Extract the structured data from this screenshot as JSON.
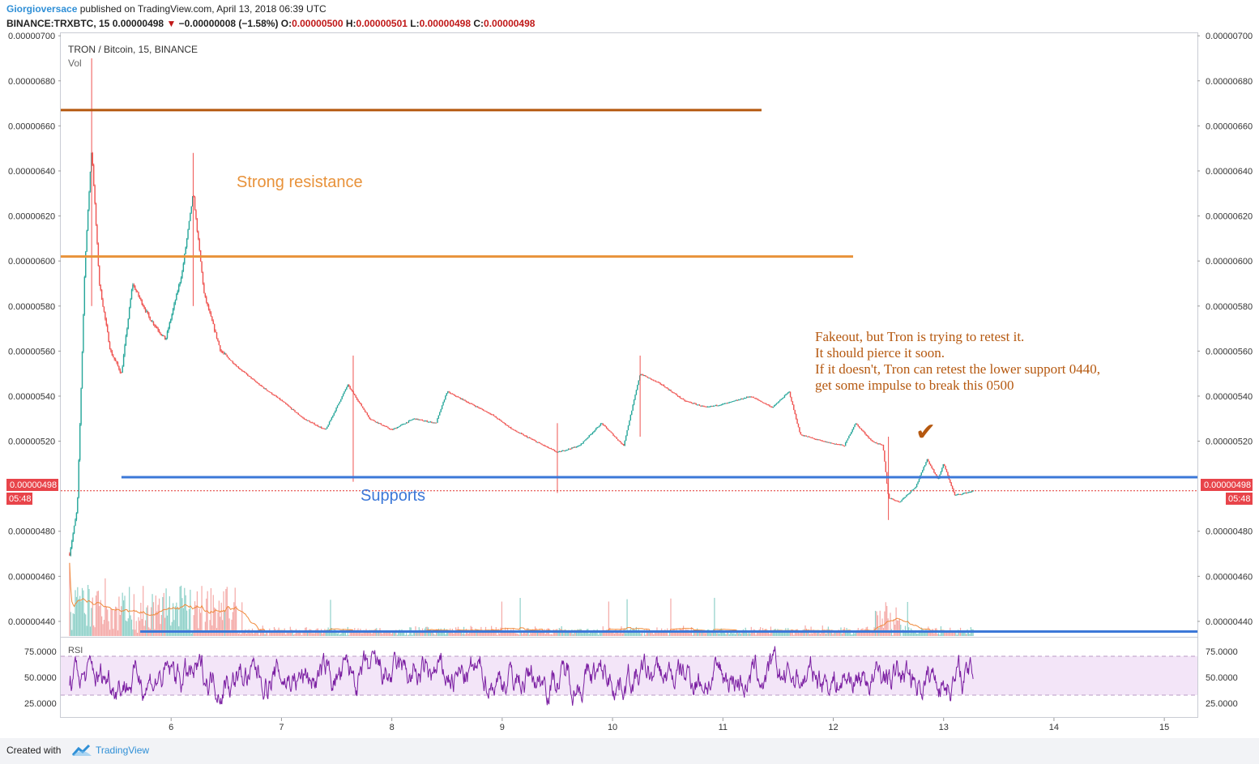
{
  "header": {
    "publisher": "Giorgioversace",
    "published_text": "published on TradingView.com, April 13, 2018 06:39 UTC",
    "symbol": "BINANCE:TRXBTC, 15",
    "last_price": "0.00000498",
    "change": "−0.00000008 (−1.58%)",
    "open_label": "O:",
    "open": "0.00000500",
    "high_label": "H:",
    "high": "0.00000501",
    "low_label": "L:",
    "low": "0.00000498",
    "close_label": "C:",
    "close": "0.00000498"
  },
  "legend": {
    "title": "TRON / Bitcoin, 15, BINANCE",
    "vol": "Vol"
  },
  "rsi_label": "RSI",
  "price_tag": {
    "value": "0.00000498",
    "countdown": "05:48"
  },
  "footer": {
    "created_with": "Created with",
    "brand": "TradingView"
  },
  "colors": {
    "up": "#26a69a",
    "down": "#ef5350",
    "resistance_dark": "#b5580f",
    "resistance": "#e8923a",
    "support": "#3c78d8",
    "annotation": "#b5580f",
    "rsi": "#7b1fa2",
    "rsi_band": "#f3e5f8",
    "price_tag": "#e8444a",
    "brand": "#2f8fd6"
  },
  "chart_data": {
    "type": "candlestick",
    "title": "TRON / Bitcoin, 15, BINANCE",
    "y_ticks": [
      "0.00000700",
      "0.00000680",
      "0.00000660",
      "0.00000640",
      "0.00000620",
      "0.00000600",
      "0.00000580",
      "0.00000560",
      "0.00000540",
      "0.00000520",
      "0.00000480",
      "0.00000460",
      "0.00000440"
    ],
    "ylim": [
      4.335e-06,
      7.015e-06
    ],
    "x_ticks": [
      "6",
      "7",
      "8",
      "9",
      "10",
      "11",
      "12",
      "13",
      "14",
      "15"
    ],
    "x_domain_days": [
      5.0,
      15.3
    ],
    "price_path": [
      [
        5.08,
        4.7e-06
      ],
      [
        5.15,
        4.9e-06
      ],
      [
        5.22,
        6e-06
      ],
      [
        5.28,
        6.5e-06
      ],
      [
        5.35,
        5.9e-06
      ],
      [
        5.45,
        5.6e-06
      ],
      [
        5.55,
        5.5e-06
      ],
      [
        5.65,
        5.9e-06
      ],
      [
        5.8,
        5.75e-06
      ],
      [
        5.95,
        5.65e-06
      ],
      [
        6.1,
        5.95e-06
      ],
      [
        6.2,
        6.3e-06
      ],
      [
        6.3,
        5.85e-06
      ],
      [
        6.45,
        5.6e-06
      ],
      [
        6.6,
        5.53e-06
      ],
      [
        6.8,
        5.45e-06
      ],
      [
        7.0,
        5.38e-06
      ],
      [
        7.2,
        5.3e-06
      ],
      [
        7.4,
        5.25e-06
      ],
      [
        7.6,
        5.45e-06
      ],
      [
        7.8,
        5.3e-06
      ],
      [
        8.0,
        5.25e-06
      ],
      [
        8.2,
        5.3e-06
      ],
      [
        8.4,
        5.28e-06
      ],
      [
        8.5,
        5.42e-06
      ],
      [
        8.7,
        5.37e-06
      ],
      [
        8.9,
        5.32e-06
      ],
      [
        9.1,
        5.25e-06
      ],
      [
        9.3,
        5.2e-06
      ],
      [
        9.5,
        5.15e-06
      ],
      [
        9.7,
        5.18e-06
      ],
      [
        9.9,
        5.28e-06
      ],
      [
        10.1,
        5.18e-06
      ],
      [
        10.25,
        5.5e-06
      ],
      [
        10.45,
        5.45e-06
      ],
      [
        10.65,
        5.38e-06
      ],
      [
        10.85,
        5.35e-06
      ],
      [
        11.05,
        5.37e-06
      ],
      [
        11.25,
        5.4e-06
      ],
      [
        11.45,
        5.35e-06
      ],
      [
        11.6,
        5.42e-06
      ],
      [
        11.7,
        5.23e-06
      ],
      [
        11.9,
        5.2e-06
      ],
      [
        12.1,
        5.18e-06
      ],
      [
        12.2,
        5.28e-06
      ],
      [
        12.35,
        5.2e-06
      ],
      [
        12.45,
        5.18e-06
      ],
      [
        12.5,
        4.95e-06
      ],
      [
        12.6,
        4.93e-06
      ],
      [
        12.75,
        5e-06
      ],
      [
        12.85,
        5.12e-06
      ],
      [
        12.95,
        5.03e-06
      ],
      [
        13.0,
        5.1e-06
      ],
      [
        13.1,
        4.96e-06
      ],
      [
        13.2,
        4.97e-06
      ],
      [
        13.27,
        4.98e-06
      ]
    ],
    "wick_spikes": [
      {
        "x": 5.28,
        "high": 6.9e-06,
        "low": 5.8e-06
      },
      {
        "x": 6.2,
        "high": 6.48e-06,
        "low": 5.8e-06
      },
      {
        "x": 7.65,
        "high": 5.58e-06,
        "low": 5.02e-06
      },
      {
        "x": 9.5,
        "high": 5.28e-06,
        "low": 4.97e-06
      },
      {
        "x": 10.25,
        "high": 5.58e-06,
        "low": 5.22e-06
      },
      {
        "x": 12.5,
        "high": 5.22e-06,
        "low": 4.85e-06
      }
    ],
    "annotations": {
      "resistance_lines": [
        {
          "price": 6.67e-06,
          "x_start": 5.0,
          "x_end": 11.35,
          "color": "#b5580f"
        },
        {
          "price": 6.02e-06,
          "x_start": 5.0,
          "x_end": 12.18,
          "color": "#e8923a"
        }
      ],
      "support_lines": [
        {
          "price": 5.04e-06,
          "x_start": 5.55,
          "x_end": 15.3
        },
        {
          "price": 4.355e-06,
          "x_start": 5.72,
          "x_end": 15.3
        }
      ],
      "current_price": 4.98e-06,
      "resistance_text": "Strong resistance",
      "support_text": "Supports",
      "note_lines": [
        "Fakeout, but Tron is trying to retest it.",
        "It should pierce it soon.",
        "If it doesn't, Tron can retest the lower support 0440,",
        "get some impulse to break this 0500"
      ],
      "checkmark": "✔"
    },
    "rsi": {
      "ticks": [
        "75.0000",
        "50.0000",
        "25.0000"
      ],
      "upper": 70,
      "lower": 30,
      "ylim": [
        12,
        88
      ]
    },
    "volume": {
      "label": "Vol"
    }
  }
}
